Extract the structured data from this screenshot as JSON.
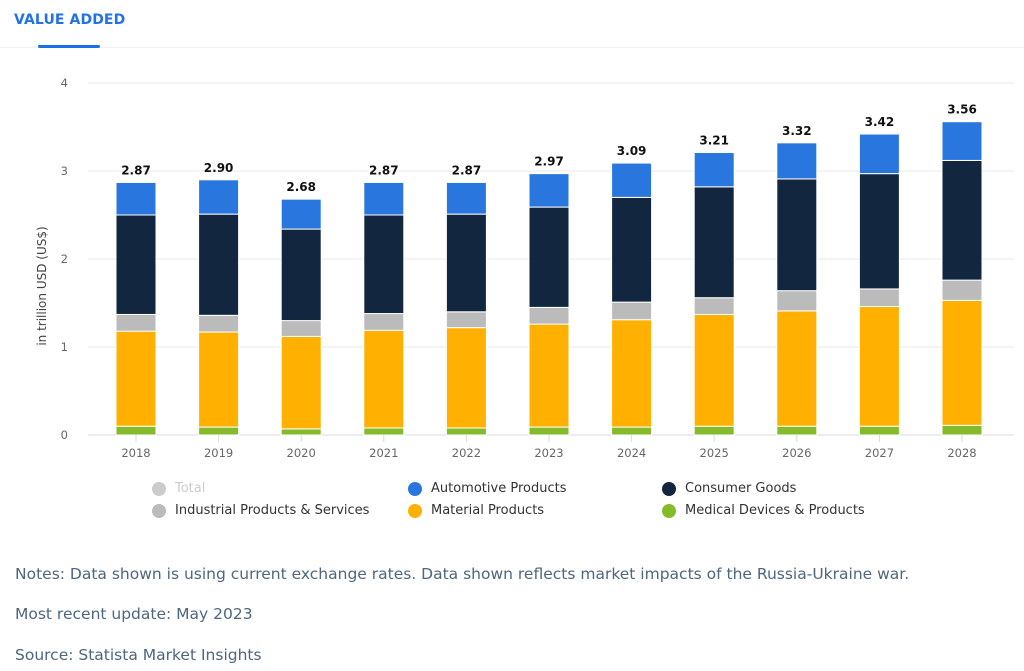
{
  "tab": {
    "label": "VALUE ADDED"
  },
  "notes": {
    "notes": "Notes: Data shown is using current exchange rates. Data shown reflects market impacts of the Russia-Ukraine war.",
    "update": "Most recent update: May 2023",
    "source": "Source: Statista Market Insights"
  },
  "colors": {
    "automotive": "#2977de",
    "consumer": "#12263f",
    "industrial": "#bbbbbb",
    "material": "#ffb000",
    "medical": "#85bb2a",
    "total": "#cccccc"
  },
  "legend": [
    {
      "label": "Total",
      "color": "#cccccc",
      "disabled": true
    },
    {
      "label": "Automotive Products",
      "color": "#2977de",
      "disabled": false
    },
    {
      "label": "Consumer Goods",
      "color": "#12263f",
      "disabled": false
    },
    {
      "label": "Industrial Products & Services",
      "color": "#bbbbbb",
      "disabled": false
    },
    {
      "label": "Material Products",
      "color": "#ffb000",
      "disabled": false
    },
    {
      "label": "Medical Devices & Products",
      "color": "#85bb2a",
      "disabled": false
    }
  ],
  "chart_data": {
    "type": "bar",
    "stacked": true,
    "title": "",
    "xlabel": "",
    "ylabel": "in trillion USD (US$)",
    "ylim": [
      0,
      4
    ],
    "yticks": [
      "0",
      "1",
      "2",
      "3",
      "4"
    ],
    "grid": true,
    "legend_position": "bottom",
    "categories": [
      "2018",
      "2019",
      "2020",
      "2021",
      "2022",
      "2023",
      "2024",
      "2025",
      "2026",
      "2027",
      "2028"
    ],
    "totals": [
      "2.87",
      "2.90",
      "2.68",
      "2.87",
      "2.87",
      "2.97",
      "3.09",
      "3.21",
      "3.32",
      "3.42",
      "3.56"
    ],
    "series": [
      {
        "name": "Medical Devices & Products",
        "color": "#85bb2a",
        "values": [
          0.1,
          0.09,
          0.07,
          0.08,
          0.08,
          0.09,
          0.09,
          0.1,
          0.1,
          0.1,
          0.11
        ]
      },
      {
        "name": "Material Products",
        "color": "#ffb000",
        "values": [
          1.08,
          1.08,
          1.05,
          1.11,
          1.14,
          1.17,
          1.22,
          1.27,
          1.31,
          1.36,
          1.42
        ]
      },
      {
        "name": "Industrial Products & Services",
        "color": "#bbbbbb",
        "values": [
          0.19,
          0.19,
          0.18,
          0.19,
          0.18,
          0.19,
          0.2,
          0.19,
          0.23,
          0.2,
          0.23
        ]
      },
      {
        "name": "Consumer Goods",
        "color": "#12263f",
        "values": [
          1.13,
          1.15,
          1.04,
          1.12,
          1.11,
          1.14,
          1.19,
          1.26,
          1.27,
          1.31,
          1.36
        ]
      },
      {
        "name": "Automotive Products",
        "color": "#2977de",
        "values": [
          0.37,
          0.39,
          0.34,
          0.37,
          0.36,
          0.38,
          0.39,
          0.39,
          0.41,
          0.45,
          0.44
        ]
      }
    ]
  }
}
